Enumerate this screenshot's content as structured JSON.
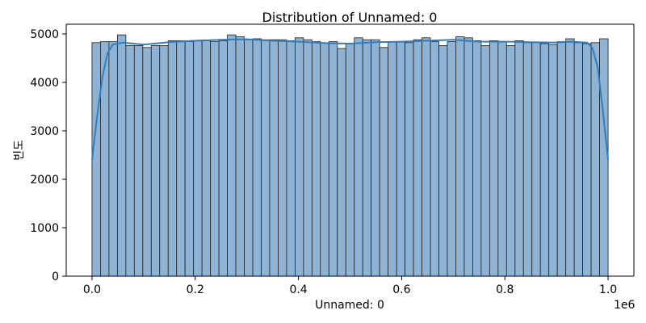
{
  "chart_data": {
    "type": "bar",
    "title": "Distribution of Unnamed: 0",
    "xlabel": "Unnamed: 0",
    "ylabel": "빈도",
    "x_offset_label": "1e6",
    "xlim": [
      -0.05,
      1.05
    ],
    "ylim": [
      0,
      5200
    ],
    "x_ticks": [
      0.0,
      0.2,
      0.4,
      0.6,
      0.8,
      1.0
    ],
    "x_tick_labels": [
      "0.0",
      "0.2",
      "0.4",
      "0.6",
      "0.8",
      "1.0"
    ],
    "y_ticks": [
      0,
      1000,
      2000,
      3000,
      4000,
      5000
    ],
    "y_tick_labels": [
      "0",
      "1000",
      "2000",
      "3000",
      "4000",
      "5000"
    ],
    "bins": {
      "start": 0.0,
      "end": 1.0,
      "values": [
        4820,
        4840,
        4840,
        4980,
        4760,
        4760,
        4720,
        4760,
        4760,
        4860,
        4860,
        4840,
        4860,
        4860,
        4840,
        4860,
        4980,
        4940,
        4880,
        4900,
        4880,
        4880,
        4880,
        4860,
        4920,
        4880,
        4840,
        4820,
        4840,
        4700,
        4800,
        4920,
        4880,
        4880,
        4720,
        4840,
        4840,
        4820,
        4880,
        4920,
        4840,
        4760,
        4840,
        4940,
        4920,
        4860,
        4760,
        4860,
        4840,
        4760,
        4860,
        4820,
        4820,
        4800,
        4780,
        4840,
        4900,
        4820,
        4800,
        4820,
        4900
      ]
    },
    "kde": {
      "x": [
        0.0,
        0.01,
        0.02,
        0.03,
        0.04,
        0.06,
        0.1,
        0.15,
        0.2,
        0.25,
        0.3,
        0.35,
        0.4,
        0.45,
        0.5,
        0.55,
        0.6,
        0.65,
        0.7,
        0.75,
        0.8,
        0.85,
        0.9,
        0.93,
        0.96,
        0.97,
        0.98,
        0.99,
        1.0
      ],
      "y": [
        2400,
        3300,
        4100,
        4600,
        4780,
        4820,
        4780,
        4830,
        4860,
        4880,
        4890,
        4860,
        4840,
        4810,
        4800,
        4830,
        4840,
        4860,
        4880,
        4840,
        4840,
        4830,
        4820,
        4840,
        4820,
        4700,
        4300,
        3400,
        2400
      ]
    },
    "colors": {
      "bar_fill": "#8fb3d4",
      "bar_edge": "#1f1f1f",
      "kde_line": "#2f7fc0"
    },
    "grid": false,
    "legend": "none"
  }
}
